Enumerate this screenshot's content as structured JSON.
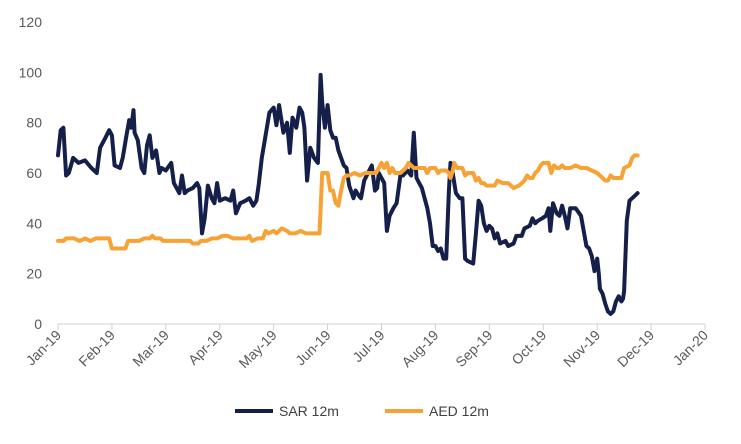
{
  "chart_data": {
    "type": "line",
    "title": "",
    "xlabel": "",
    "ylabel": "",
    "ylim": [
      0,
      120
    ],
    "yticks": [
      "0",
      "20",
      "40",
      "60",
      "80",
      "100",
      "120"
    ],
    "xtick_labels": [
      "Jan-19",
      "Feb-19",
      "Mar-19",
      "Apr-19",
      "May-19",
      "Jun-19",
      "Jul-19",
      "Aug-19",
      "Sep-19",
      "Oct-19",
      "Nov-19",
      "Dec-19",
      "Jan-20"
    ],
    "legend_position": "bottom",
    "grid": false,
    "series": [
      {
        "name": "SAR 12m",
        "color": "#14204a",
        "points": [
          [
            0,
            67
          ],
          [
            0.05,
            77
          ],
          [
            0.1,
            78
          ],
          [
            0.15,
            59
          ],
          [
            0.2,
            60
          ],
          [
            0.28,
            66
          ],
          [
            0.38,
            64
          ],
          [
            0.5,
            65
          ],
          [
            0.62,
            62
          ],
          [
            0.72,
            60
          ],
          [
            0.78,
            70
          ],
          [
            0.88,
            74
          ],
          [
            0.95,
            77
          ],
          [
            1.0,
            75
          ],
          [
            1.05,
            63
          ],
          [
            1.15,
            62
          ],
          [
            1.2,
            66
          ],
          [
            1.27,
            75
          ],
          [
            1.32,
            81
          ],
          [
            1.36,
            78
          ],
          [
            1.4,
            85
          ],
          [
            1.42,
            76
          ],
          [
            1.48,
            73
          ],
          [
            1.55,
            62
          ],
          [
            1.6,
            60
          ],
          [
            1.65,
            71
          ],
          [
            1.7,
            75
          ],
          [
            1.75,
            66
          ],
          [
            1.82,
            69
          ],
          [
            1.88,
            60
          ],
          [
            1.92,
            62
          ],
          [
            2.0,
            61
          ],
          [
            2.1,
            64
          ],
          [
            2.15,
            56
          ],
          [
            2.25,
            52
          ],
          [
            2.3,
            59
          ],
          [
            2.35,
            52
          ],
          [
            2.4,
            53
          ],
          [
            2.5,
            54
          ],
          [
            2.58,
            56
          ],
          [
            2.62,
            54
          ],
          [
            2.67,
            36
          ],
          [
            2.72,
            42
          ],
          [
            2.78,
            55
          ],
          [
            2.85,
            50
          ],
          [
            2.9,
            48
          ],
          [
            2.95,
            56
          ],
          [
            3.0,
            49
          ],
          [
            3.1,
            50
          ],
          [
            3.2,
            49
          ],
          [
            3.25,
            53
          ],
          [
            3.3,
            44
          ],
          [
            3.38,
            48
          ],
          [
            3.48,
            49
          ],
          [
            3.55,
            50
          ],
          [
            3.62,
            47
          ],
          [
            3.68,
            49
          ],
          [
            3.72,
            55
          ],
          [
            3.78,
            66
          ],
          [
            3.85,
            75
          ],
          [
            3.92,
            84
          ],
          [
            4.0,
            86
          ],
          [
            4.05,
            79
          ],
          [
            4.1,
            87
          ],
          [
            4.18,
            76
          ],
          [
            4.25,
            80
          ],
          [
            4.3,
            68
          ],
          [
            4.35,
            82
          ],
          [
            4.42,
            78
          ],
          [
            4.48,
            86
          ],
          [
            4.53,
            84
          ],
          [
            4.57,
            78
          ],
          [
            4.62,
            57
          ],
          [
            4.68,
            70
          ],
          [
            4.75,
            66
          ],
          [
            4.82,
            64
          ],
          [
            4.87,
            99
          ],
          [
            4.9,
            88
          ],
          [
            4.95,
            78
          ],
          [
            5.0,
            87
          ],
          [
            5.05,
            77
          ],
          [
            5.1,
            74
          ],
          [
            5.15,
            74
          ],
          [
            5.2,
            69
          ],
          [
            5.25,
            66
          ],
          [
            5.3,
            63
          ],
          [
            5.35,
            62
          ],
          [
            5.4,
            55
          ],
          [
            5.48,
            50
          ],
          [
            5.52,
            53
          ],
          [
            5.58,
            51
          ],
          [
            5.62,
            50
          ],
          [
            5.68,
            57
          ],
          [
            5.75,
            60
          ],
          [
            5.82,
            63
          ],
          [
            5.88,
            53
          ],
          [
            5.92,
            54
          ],
          [
            5.95,
            60
          ],
          [
            6.05,
            56
          ],
          [
            6.1,
            37
          ],
          [
            6.15,
            43
          ],
          [
            6.22,
            46
          ],
          [
            6.28,
            48
          ],
          [
            6.35,
            59
          ],
          [
            6.4,
            59
          ],
          [
            6.48,
            61
          ],
          [
            6.55,
            59
          ],
          [
            6.6,
            76
          ],
          [
            6.65,
            58
          ],
          [
            6.7,
            56
          ],
          [
            6.75,
            54
          ],
          [
            6.8,
            50
          ],
          [
            6.85,
            46
          ],
          [
            6.9,
            40
          ],
          [
            6.95,
            31
          ],
          [
            7.0,
            31
          ],
          [
            7.05,
            29
          ],
          [
            7.1,
            30
          ],
          [
            7.15,
            26
          ],
          [
            7.2,
            26
          ],
          [
            7.25,
            53
          ],
          [
            7.28,
            64
          ],
          [
            7.32,
            60
          ],
          [
            7.38,
            52
          ],
          [
            7.45,
            50
          ],
          [
            7.5,
            50
          ],
          [
            7.55,
            26
          ],
          [
            7.6,
            25
          ],
          [
            7.7,
            24
          ],
          [
            7.75,
            36
          ],
          [
            7.8,
            49
          ],
          [
            7.85,
            47
          ],
          [
            7.9,
            40
          ],
          [
            7.95,
            37
          ],
          [
            8.0,
            39
          ],
          [
            8.05,
            38
          ],
          [
            8.1,
            34
          ],
          [
            8.15,
            36
          ],
          [
            8.2,
            32
          ],
          [
            8.3,
            33
          ],
          [
            8.35,
            31
          ],
          [
            8.45,
            32
          ],
          [
            8.5,
            35
          ],
          [
            8.6,
            35
          ],
          [
            8.65,
            38
          ],
          [
            8.75,
            39
          ],
          [
            8.8,
            42
          ],
          [
            8.85,
            40
          ],
          [
            8.9,
            41
          ],
          [
            8.98,
            42
          ],
          [
            9.05,
            43
          ],
          [
            9.1,
            46
          ],
          [
            9.13,
            37
          ],
          [
            9.18,
            48
          ],
          [
            9.25,
            44
          ],
          [
            9.3,
            43
          ],
          [
            9.35,
            47
          ],
          [
            9.4,
            43
          ],
          [
            9.45,
            38
          ],
          [
            9.5,
            46
          ],
          [
            9.6,
            46
          ],
          [
            9.7,
            43
          ],
          [
            9.75,
            37
          ],
          [
            9.8,
            31
          ],
          [
            9.85,
            30
          ],
          [
            9.9,
            27
          ],
          [
            9.95,
            21
          ],
          [
            10.0,
            26
          ],
          [
            10.03,
            20
          ],
          [
            10.05,
            14
          ],
          [
            10.1,
            12
          ],
          [
            10.15,
            8
          ],
          [
            10.2,
            5
          ],
          [
            10.25,
            4
          ],
          [
            10.3,
            5
          ],
          [
            10.35,
            9
          ],
          [
            10.4,
            11
          ],
          [
            10.45,
            9
          ],
          [
            10.48,
            10
          ],
          [
            10.5,
            13
          ],
          [
            10.55,
            41
          ],
          [
            10.6,
            49
          ],
          [
            10.65,
            50
          ],
          [
            10.7,
            51
          ],
          [
            10.75,
            52
          ]
        ]
      },
      {
        "name": "AED 12m",
        "color": "#f7a235",
        "points": [
          [
            0,
            33
          ],
          [
            0.1,
            33
          ],
          [
            0.15,
            34
          ],
          [
            0.3,
            34
          ],
          [
            0.4,
            33
          ],
          [
            0.5,
            34
          ],
          [
            0.6,
            33
          ],
          [
            0.7,
            34
          ],
          [
            0.8,
            34
          ],
          [
            0.95,
            34
          ],
          [
            1.0,
            30
          ],
          [
            1.15,
            30
          ],
          [
            1.25,
            30
          ],
          [
            1.3,
            33
          ],
          [
            1.5,
            33
          ],
          [
            1.6,
            34
          ],
          [
            1.7,
            34
          ],
          [
            1.75,
            35
          ],
          [
            1.8,
            34
          ],
          [
            1.9,
            34
          ],
          [
            1.95,
            33
          ],
          [
            2.05,
            33
          ],
          [
            2.15,
            33
          ],
          [
            2.25,
            33
          ],
          [
            2.35,
            33
          ],
          [
            2.45,
            33
          ],
          [
            2.5,
            32
          ],
          [
            2.6,
            32
          ],
          [
            2.65,
            33
          ],
          [
            2.75,
            33
          ],
          [
            2.85,
            34
          ],
          [
            2.95,
            34
          ],
          [
            3.05,
            35
          ],
          [
            3.15,
            35
          ],
          [
            3.25,
            34
          ],
          [
            3.35,
            34
          ],
          [
            3.45,
            34
          ],
          [
            3.5,
            34
          ],
          [
            3.55,
            35
          ],
          [
            3.6,
            33
          ],
          [
            3.7,
            34
          ],
          [
            3.8,
            34
          ],
          [
            3.85,
            37
          ],
          [
            3.9,
            36
          ],
          [
            4.0,
            37
          ],
          [
            4.05,
            36
          ],
          [
            4.15,
            38
          ],
          [
            4.25,
            37
          ],
          [
            4.3,
            36
          ],
          [
            4.4,
            36
          ],
          [
            4.5,
            37
          ],
          [
            4.6,
            36
          ],
          [
            4.7,
            36
          ],
          [
            4.8,
            36
          ],
          [
            4.85,
            36
          ],
          [
            4.88,
            50
          ],
          [
            4.9,
            60
          ],
          [
            5.0,
            60
          ],
          [
            5.05,
            53
          ],
          [
            5.1,
            53
          ],
          [
            5.15,
            48
          ],
          [
            5.2,
            47
          ],
          [
            5.25,
            53
          ],
          [
            5.3,
            58
          ],
          [
            5.35,
            59
          ],
          [
            5.4,
            59
          ],
          [
            5.5,
            60
          ],
          [
            5.6,
            59
          ],
          [
            5.7,
            60
          ],
          [
            5.8,
            60
          ],
          [
            5.9,
            60
          ],
          [
            6.0,
            64
          ],
          [
            6.05,
            62
          ],
          [
            6.1,
            64
          ],
          [
            6.15,
            60
          ],
          [
            6.2,
            62
          ],
          [
            6.25,
            60
          ],
          [
            6.35,
            60
          ],
          [
            6.45,
            62
          ],
          [
            6.5,
            64
          ],
          [
            6.6,
            62
          ],
          [
            6.7,
            62
          ],
          [
            6.8,
            62
          ],
          [
            6.85,
            60
          ],
          [
            6.9,
            62
          ],
          [
            7.0,
            62
          ],
          [
            7.05,
            60
          ],
          [
            7.1,
            61
          ],
          [
            7.2,
            61
          ],
          [
            7.25,
            60
          ],
          [
            7.28,
            58
          ],
          [
            7.32,
            61
          ],
          [
            7.35,
            64
          ],
          [
            7.4,
            62
          ],
          [
            7.5,
            62
          ],
          [
            7.55,
            59
          ],
          [
            7.6,
            60
          ],
          [
            7.7,
            60
          ],
          [
            7.75,
            57
          ],
          [
            7.8,
            58
          ],
          [
            7.85,
            56
          ],
          [
            7.9,
            56
          ],
          [
            7.95,
            55
          ],
          [
            8.0,
            55
          ],
          [
            8.1,
            55
          ],
          [
            8.15,
            57
          ],
          [
            8.25,
            56
          ],
          [
            8.35,
            56
          ],
          [
            8.45,
            54
          ],
          [
            8.55,
            55
          ],
          [
            8.65,
            57
          ],
          [
            8.7,
            59
          ],
          [
            8.75,
            58
          ],
          [
            8.8,
            58
          ],
          [
            8.85,
            60
          ],
          [
            8.9,
            61
          ],
          [
            8.95,
            63
          ],
          [
            9.0,
            64
          ],
          [
            9.1,
            64
          ],
          [
            9.15,
            60
          ],
          [
            9.2,
            63
          ],
          [
            9.25,
            62
          ],
          [
            9.3,
            62
          ],
          [
            9.35,
            63
          ],
          [
            9.4,
            62
          ],
          [
            9.5,
            62
          ],
          [
            9.6,
            63
          ],
          [
            9.7,
            62
          ],
          [
            9.8,
            62
          ],
          [
            9.9,
            61
          ],
          [
            10.0,
            60
          ],
          [
            10.05,
            59
          ],
          [
            10.1,
            58
          ],
          [
            10.15,
            57
          ],
          [
            10.2,
            57
          ],
          [
            10.25,
            59
          ],
          [
            10.3,
            58
          ],
          [
            10.4,
            58
          ],
          [
            10.45,
            58
          ],
          [
            10.5,
            62
          ],
          [
            10.6,
            63
          ],
          [
            10.65,
            66
          ],
          [
            10.7,
            67
          ],
          [
            10.75,
            67
          ]
        ]
      }
    ]
  }
}
